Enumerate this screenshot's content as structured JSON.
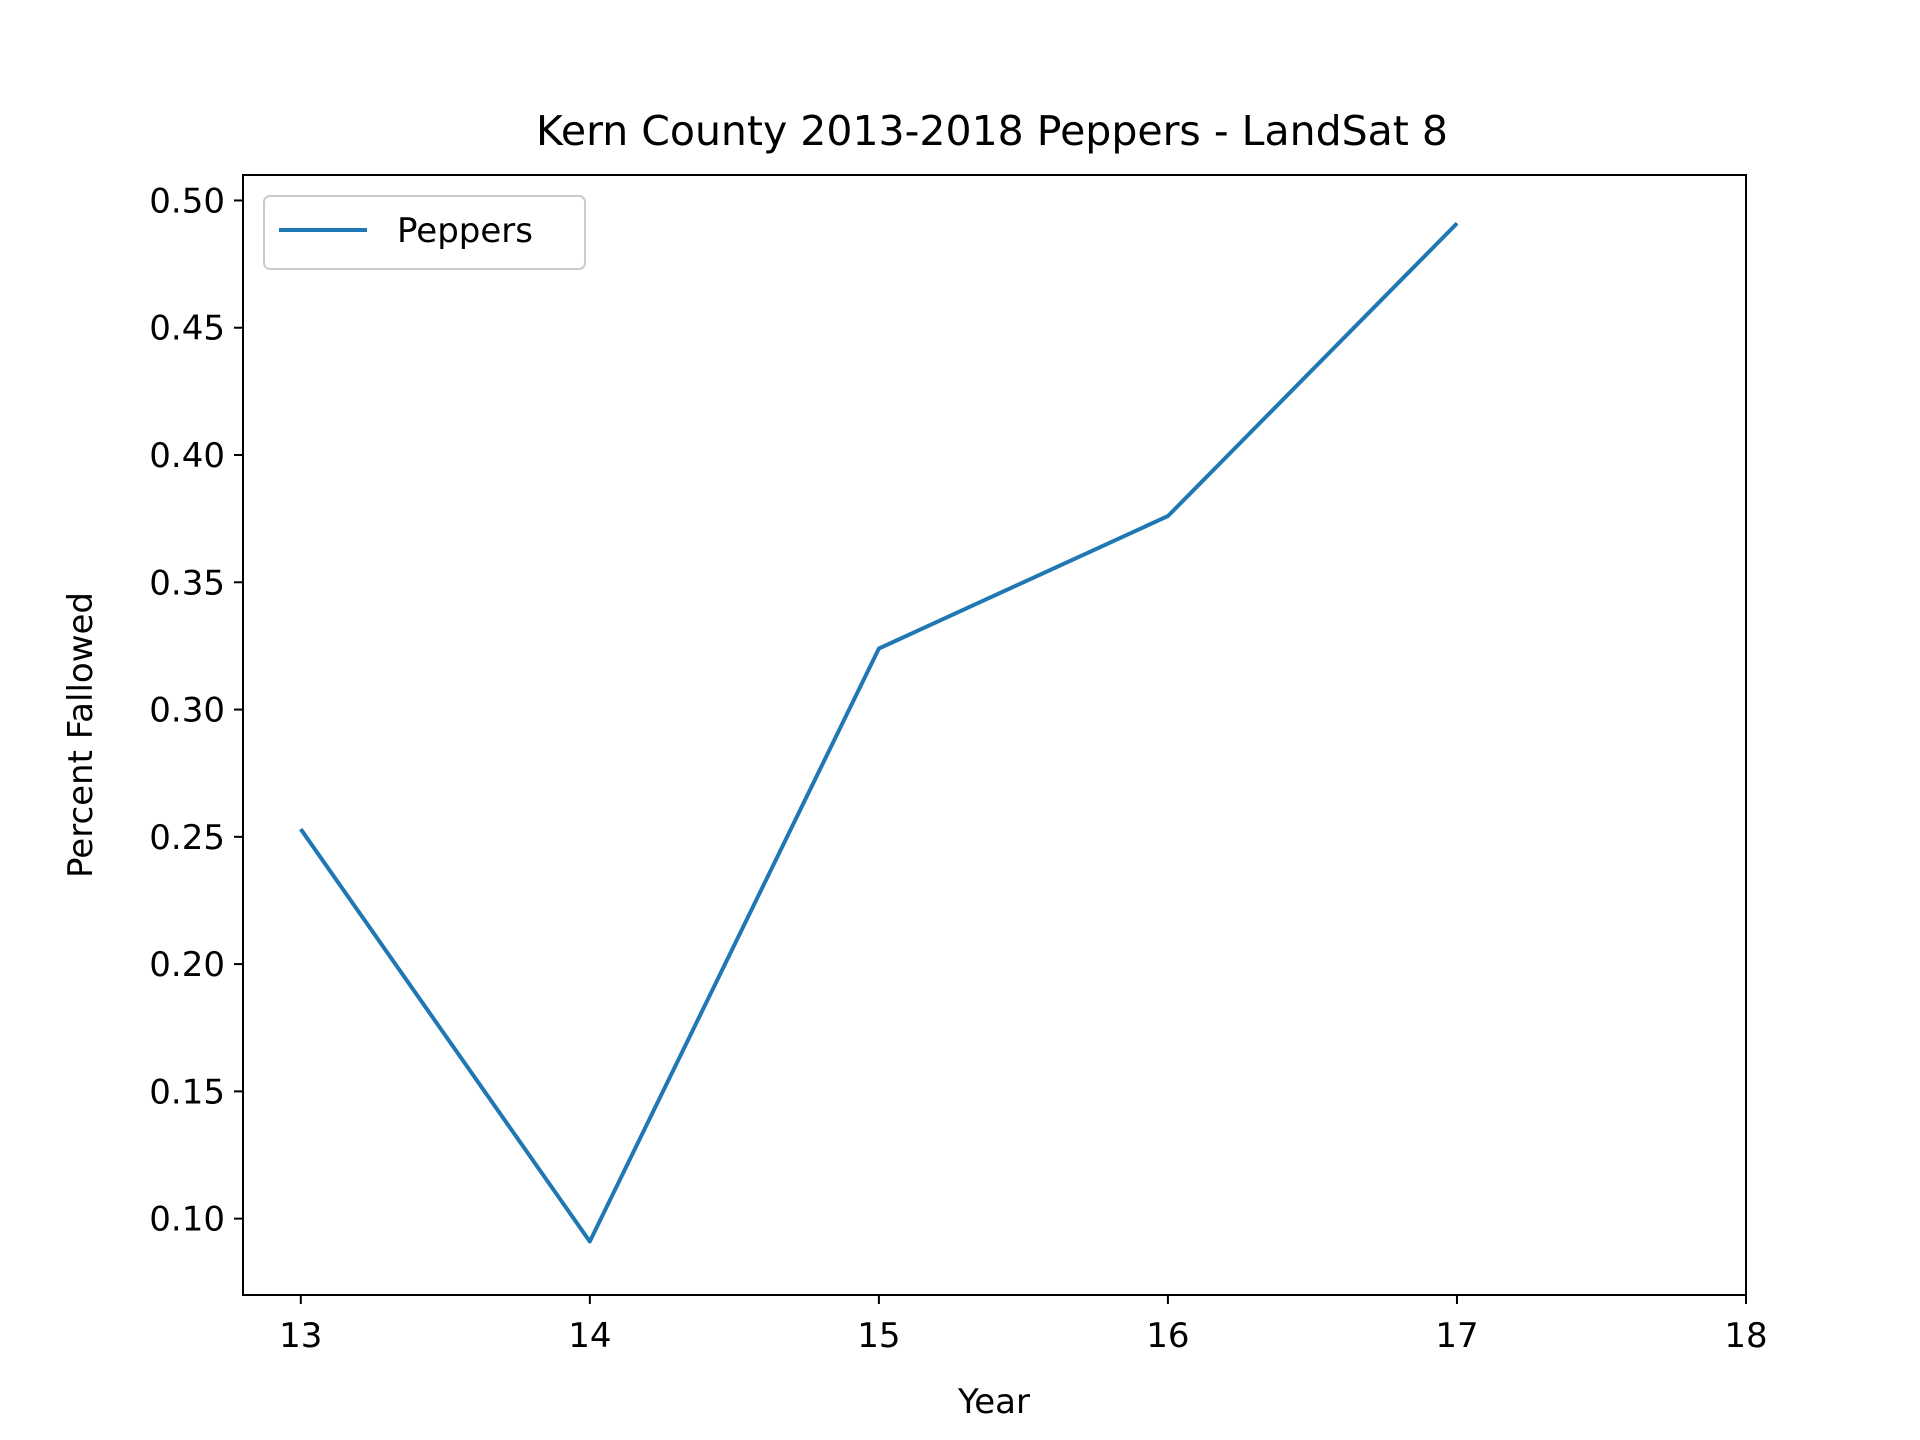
{
  "chart_data": {
    "type": "line",
    "title": "Kern County 2013-2018 Peppers - LandSat 8",
    "xlabel": "Year",
    "ylabel": "Percent Fallowed",
    "xlim": [
      12.8,
      18
    ],
    "ylim": [
      0.07,
      0.51
    ],
    "xticks": [
      13,
      14,
      15,
      16,
      17,
      18
    ],
    "yticks": [
      0.1,
      0.15,
      0.2,
      0.25,
      0.3,
      0.35,
      0.4,
      0.45,
      0.5
    ],
    "grid": false,
    "legend_position": "top-left",
    "series": [
      {
        "name": "Peppers",
        "color": "#1f77b4",
        "x": [
          13,
          14,
          15,
          16,
          17
        ],
        "y": [
          0.253,
          0.091,
          0.324,
          0.376,
          0.491
        ]
      }
    ]
  }
}
